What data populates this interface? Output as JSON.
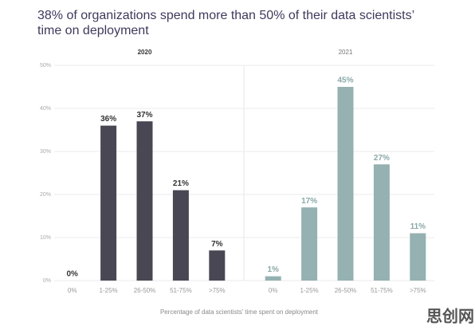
{
  "title": "38% of organizations spend more than 50% of their data scientists’ time on deployment",
  "x_label": "Percentage of data scientists’ time spent on deployment",
  "watermark": "思创网",
  "chart_data": [
    {
      "type": "bar",
      "title": "2020",
      "categories": [
        "0%",
        "1-25%",
        "26-50%",
        "51-75%",
        ">75%"
      ],
      "values": [
        0,
        36,
        37,
        21,
        7
      ],
      "value_labels": [
        "0%",
        "36%",
        "37%",
        "21%",
        "7%"
      ],
      "color": "#4a4754",
      "ylim": [
        0,
        50
      ],
      "yticks": [
        {
          "value": 0,
          "label": "0%"
        },
        {
          "value": 10,
          "label": "10%"
        },
        {
          "value": 20,
          "label": "20%"
        },
        {
          "value": 30,
          "label": "30%"
        },
        {
          "value": 40,
          "label": "40%"
        },
        {
          "value": 50,
          "label": "50%"
        }
      ],
      "grid": true
    },
    {
      "type": "bar",
      "title": "2021",
      "categories": [
        "0%",
        "1-25%",
        "26-50%",
        "51-75%",
        ">75%"
      ],
      "values": [
        1,
        17,
        45,
        27,
        11
      ],
      "value_labels": [
        "1%",
        "17%",
        "45%",
        "27%",
        "11%"
      ],
      "color": "#95b1b1",
      "ylim": [
        0,
        50
      ]
    }
  ]
}
